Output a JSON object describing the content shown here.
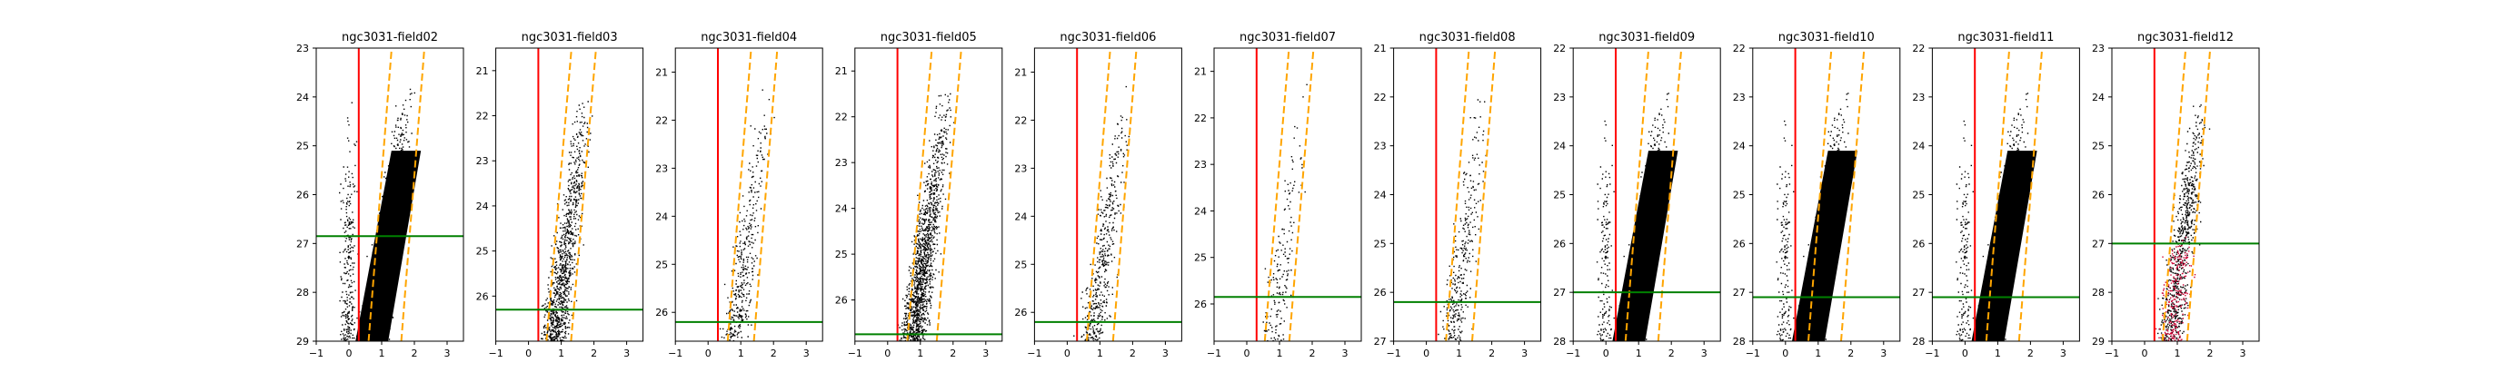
{
  "figure": {
    "panel_count": 11,
    "colors": {
      "points": "#000000",
      "points_highlight": "#cc0033",
      "vertical_line": "#ff0000",
      "dashed_lines": "#ffa500",
      "horizontal_line": "#008000",
      "axes": "#000000"
    },
    "vertical_line_x": 0.3,
    "dashed_line_slope": 8.5
  },
  "chart_data": [
    {
      "type": "scatter",
      "title": "ngc3031-field02",
      "xlim": [
        -1,
        3.5
      ],
      "ylim": [
        29,
        23
      ],
      "xticks": [
        -1,
        0,
        1,
        2,
        3
      ],
      "yticks": [
        23,
        24,
        25,
        26,
        27,
        28,
        29
      ],
      "hline_y": 26.85,
      "dashed_x_at_ymax": [
        0.6,
        1.6
      ],
      "density": 1.0,
      "highlight": false,
      "x_labels": [
        "−1",
        "0",
        "1",
        "2",
        "3"
      ],
      "y_labels": [
        "23",
        "24",
        "25",
        "26",
        "27",
        "28",
        "29"
      ]
    },
    {
      "type": "scatter",
      "title": "ngc3031-field03",
      "xlim": [
        -1,
        3.5
      ],
      "ylim": [
        27,
        20.5
      ],
      "xticks": [
        -1,
        0,
        1,
        2,
        3
      ],
      "yticks": [
        21,
        22,
        23,
        24,
        25,
        26
      ],
      "hline_y": 26.3,
      "dashed_x_at_ymax": [
        0.55,
        1.3
      ],
      "density": 0.35,
      "highlight": false,
      "x_labels": [
        "−1",
        "0",
        "1",
        "2",
        "3"
      ],
      "y_labels": [
        "21",
        "22",
        "23",
        "24",
        "25",
        "26"
      ]
    },
    {
      "type": "scatter",
      "title": "ngc3031-field04",
      "xlim": [
        -1,
        3.5
      ],
      "ylim": [
        26.6,
        20.5
      ],
      "xticks": [
        -1,
        0,
        1,
        2,
        3
      ],
      "yticks": [
        21,
        22,
        23,
        24,
        25,
        26
      ],
      "hline_y": 26.2,
      "dashed_x_at_ymax": [
        0.6,
        1.4
      ],
      "density": 0.12,
      "highlight": false,
      "x_labels": [
        "−1",
        "0",
        "1",
        "2",
        "3"
      ],
      "y_labels": [
        "21",
        "22",
        "23",
        "24",
        "25",
        "26"
      ]
    },
    {
      "type": "scatter",
      "title": "ngc3031-field05",
      "xlim": [
        -1,
        3.5
      ],
      "ylim": [
        26.9,
        20.5
      ],
      "xticks": [
        -1,
        0,
        1,
        2,
        3
      ],
      "yticks": [
        21,
        22,
        23,
        24,
        25,
        26
      ],
      "hline_y": 26.75,
      "dashed_x_at_ymax": [
        0.6,
        1.5
      ],
      "density": 0.5,
      "highlight": false,
      "x_labels": [
        "−1",
        "0",
        "1",
        "2",
        "3"
      ],
      "y_labels": [
        "21",
        "22",
        "23",
        "24",
        "25",
        "26"
      ]
    },
    {
      "type": "scatter",
      "title": "ngc3031-field06",
      "xlim": [
        -1,
        3.5
      ],
      "ylim": [
        26.6,
        20.5
      ],
      "xticks": [
        -1,
        0,
        1,
        2,
        3
      ],
      "yticks": [
        21,
        22,
        23,
        24,
        25,
        26
      ],
      "hline_y": 26.2,
      "dashed_x_at_ymax": [
        0.6,
        1.4
      ],
      "density": 0.15,
      "highlight": false,
      "x_labels": [
        "−1",
        "0",
        "1",
        "2",
        "3"
      ],
      "y_labels": [
        "21",
        "22",
        "23",
        "24",
        "25",
        "26"
      ]
    },
    {
      "type": "scatter",
      "title": "ngc3031-field07",
      "xlim": [
        -1,
        3.5
      ],
      "ylim": [
        26.8,
        20.5
      ],
      "xticks": [
        -1,
        0,
        1,
        2,
        3
      ],
      "yticks": [
        21,
        22,
        23,
        24,
        25,
        26
      ],
      "hline_y": 25.85,
      "dashed_x_at_ymax": [
        0.55,
        1.3
      ],
      "density": 0.04,
      "highlight": false,
      "x_labels": [
        "−1",
        "0",
        "1",
        "2",
        "3"
      ],
      "y_labels": [
        "21",
        "22",
        "23",
        "24",
        "25",
        "26"
      ]
    },
    {
      "type": "scatter",
      "title": "ngc3031-field08",
      "xlim": [
        -1,
        3.5
      ],
      "ylim": [
        27,
        21
      ],
      "xticks": [
        -1,
        0,
        1,
        2,
        3
      ],
      "yticks": [
        21,
        22,
        23,
        24,
        25,
        26,
        27
      ],
      "hline_y": 26.2,
      "dashed_x_at_ymax": [
        0.6,
        1.4
      ],
      "density": 0.1,
      "highlight": false,
      "x_labels": [
        "−1",
        "0",
        "1",
        "2",
        "3"
      ],
      "y_labels": [
        "21",
        "22",
        "23",
        "24",
        "25",
        "26",
        "27"
      ]
    },
    {
      "type": "scatter",
      "title": "ngc3031-field09",
      "xlim": [
        -1,
        3.5
      ],
      "ylim": [
        28,
        22
      ],
      "xticks": [
        -1,
        0,
        1,
        2,
        3
      ],
      "yticks": [
        22,
        23,
        24,
        25,
        26,
        27,
        28
      ],
      "hline_y": 27.0,
      "dashed_x_at_ymax": [
        0.6,
        1.6
      ],
      "density": 1.0,
      "highlight": false,
      "x_labels": [
        "−1",
        "0",
        "1",
        "2",
        "3"
      ],
      "y_labels": [
        "22",
        "23",
        "24",
        "25",
        "26",
        "27",
        "28"
      ]
    },
    {
      "type": "scatter",
      "title": "ngc3031-field10",
      "xlim": [
        -1,
        3.5
      ],
      "ylim": [
        28,
        22
      ],
      "xticks": [
        -1,
        0,
        1,
        2,
        3
      ],
      "yticks": [
        22,
        23,
        24,
        25,
        26,
        27,
        28
      ],
      "hline_y": 27.1,
      "dashed_x_at_ymax": [
        0.7,
        1.7
      ],
      "density": 1.0,
      "highlight": false,
      "x_labels": [
        "−1",
        "0",
        "1",
        "2",
        "3"
      ],
      "y_labels": [
        "22",
        "23",
        "24",
        "25",
        "26",
        "27",
        "28"
      ]
    },
    {
      "type": "scatter",
      "title": "ngc3031-field11",
      "xlim": [
        -1,
        3.5
      ],
      "ylim": [
        28,
        22
      ],
      "xticks": [
        -1,
        0,
        1,
        2,
        3
      ],
      "yticks": [
        22,
        23,
        24,
        25,
        26,
        27,
        28
      ],
      "hline_y": 27.1,
      "dashed_x_at_ymax": [
        0.65,
        1.65
      ],
      "density": 1.0,
      "highlight": false,
      "x_labels": [
        "−1",
        "0",
        "1",
        "2",
        "3"
      ],
      "y_labels": [
        "22",
        "23",
        "24",
        "25",
        "26",
        "27",
        "28"
      ]
    },
    {
      "type": "scatter",
      "title": "ngc3031-field12",
      "xlim": [
        -1,
        3.5
      ],
      "ylim": [
        29,
        23
      ],
      "xticks": [
        -1,
        0,
        1,
        2,
        3
      ],
      "yticks": [
        23,
        24,
        25,
        26,
        27,
        28,
        29
      ],
      "hline_y": 27.0,
      "dashed_x_at_ymax": [
        0.55,
        1.3
      ],
      "density": 0.35,
      "highlight": true,
      "x_labels": [
        "−1",
        "0",
        "1",
        "2",
        "3"
      ],
      "y_labels": [
        "23",
        "24",
        "25",
        "26",
        "27",
        "28",
        "29"
      ]
    }
  ]
}
